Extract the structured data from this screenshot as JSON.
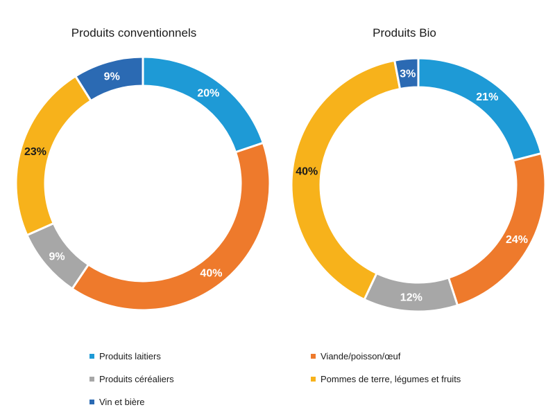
{
  "colors": {
    "produits_laitiers": "#1e9ad6",
    "viande": "#ee7a2c",
    "cerealiers": "#a7a7a7",
    "pommes": "#f7b21b",
    "vin": "#2b6ab3"
  },
  "chart_data": [
    {
      "type": "pie",
      "variant": "donut",
      "title": "Produits conventionnels",
      "categories": [
        "Produits laitiers",
        "Viande/poisson/œuf",
        "Produits céréaliers",
        "Pommes de terre, légumes et fruits",
        "Vin et bière"
      ],
      "values": [
        20,
        40,
        9,
        23,
        9
      ],
      "labels": [
        "20%",
        "40%",
        "9%",
        "23%",
        "9%"
      ]
    },
    {
      "type": "pie",
      "variant": "donut",
      "title": "Produits Bio",
      "categories": [
        "Produits laitiers",
        "Viande/poisson/œuf",
        "Produits céréaliers",
        "Pommes de terre, légumes et fruits",
        "Vin et bière"
      ],
      "values": [
        21,
        24,
        12,
        40,
        3
      ],
      "labels": [
        "21%",
        "24%",
        "12%",
        "40%",
        "3%"
      ]
    }
  ],
  "legend": {
    "placement": "bottom",
    "items": [
      {
        "label": "Produits laitiers",
        "color_key": "produits_laitiers"
      },
      {
        "label": "Viande/poisson/œuf",
        "color_key": "viande"
      },
      {
        "label": "Produits céréaliers",
        "color_key": "cerealiers"
      },
      {
        "label": "Pommes de terre, légumes et fruits",
        "color_key": "pommes"
      },
      {
        "label": "Vin et bière",
        "color_key": "vin"
      }
    ]
  }
}
